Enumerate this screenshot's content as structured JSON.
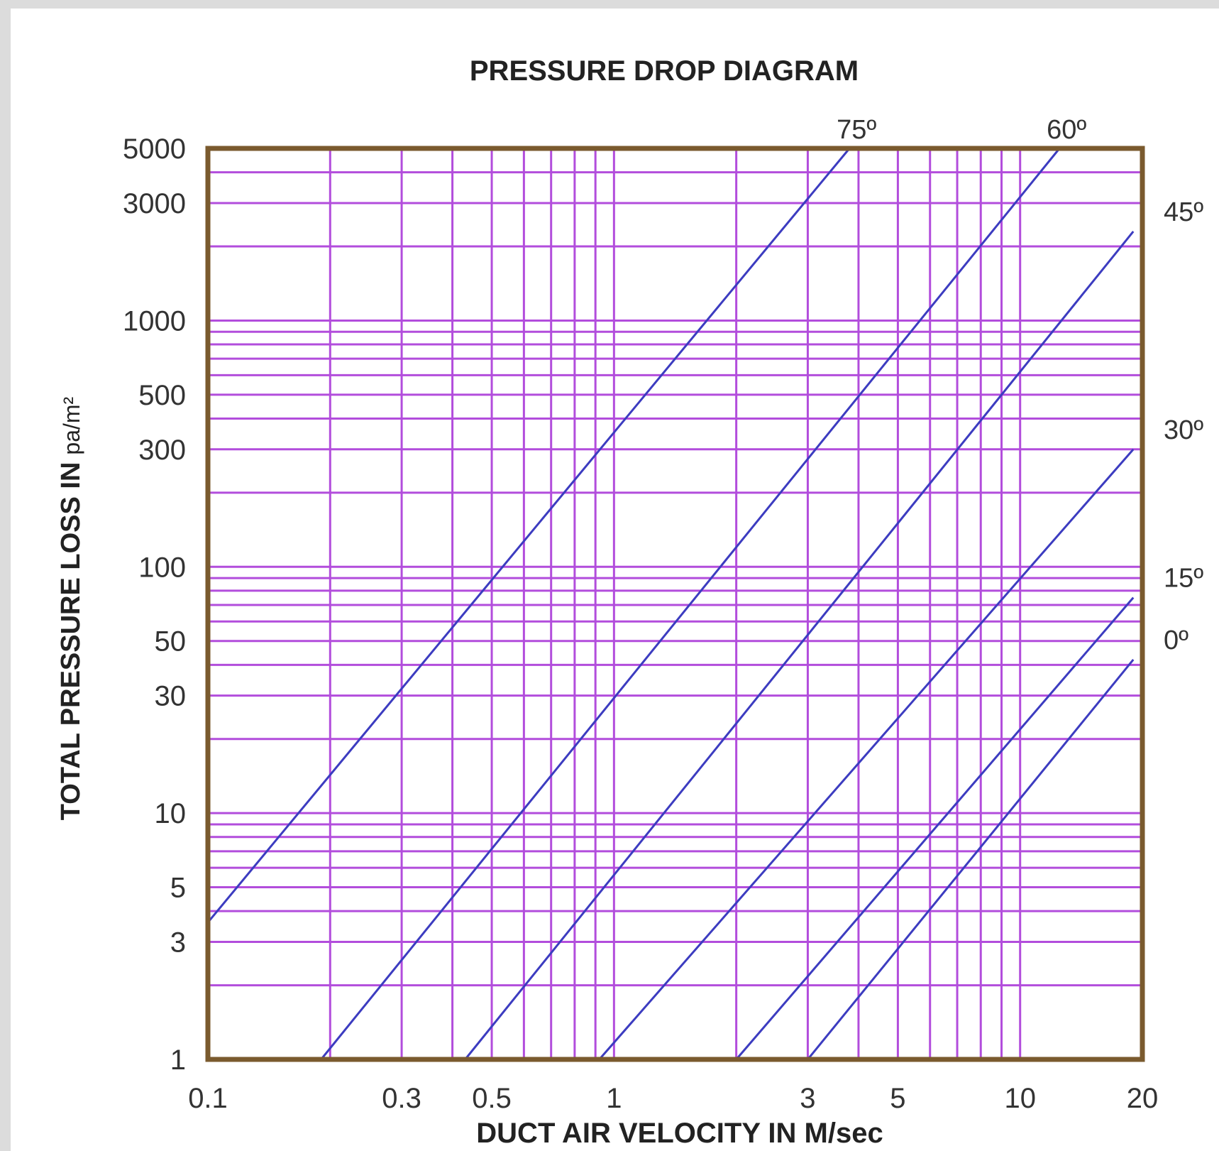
{
  "chart_data": {
    "type": "line",
    "title": "PRESSURE DROP DIAGRAM",
    "xlabel": "DUCT AIR VELOCITY IN M/sec",
    "ylabel": "TOTAL PRESSURE LOSS IN",
    "ylabel_unit": "pa/m²",
    "x_scale": "log",
    "y_scale": "log",
    "xlim": [
      0.1,
      20
    ],
    "ylim": [
      1,
      5000
    ],
    "grid": true,
    "x_ticks": [
      {
        "value": 0.1,
        "label": "0.1"
      },
      {
        "value": 0.3,
        "label": "0.3"
      },
      {
        "value": 0.5,
        "label": "0.5"
      },
      {
        "value": 1,
        "label": "1"
      },
      {
        "value": 3,
        "label": "3"
      },
      {
        "value": 5,
        "label": "5"
      },
      {
        "value": 10,
        "label": "10"
      },
      {
        "value": 20,
        "label": "20"
      }
    ],
    "y_ticks": [
      {
        "value": 1,
        "label": "1"
      },
      {
        "value": 3,
        "label": "3"
      },
      {
        "value": 5,
        "label": "5"
      },
      {
        "value": 10,
        "label": "10"
      },
      {
        "value": 30,
        "label": "30"
      },
      {
        "value": 50,
        "label": "50"
      },
      {
        "value": 100,
        "label": "100"
      },
      {
        "value": 300,
        "label": "300"
      },
      {
        "value": 500,
        "label": "500"
      },
      {
        "value": 1000,
        "label": "1000"
      },
      {
        "value": 3000,
        "label": "3000"
      },
      {
        "value": 5000,
        "label": "5000"
      }
    ],
    "series": [
      {
        "name": "75º",
        "points": [
          [
            0.1,
            3.6
          ],
          [
            3.8,
            5000
          ]
        ]
      },
      {
        "name": "60º",
        "points": [
          [
            0.19,
            1
          ],
          [
            12.5,
            5000
          ]
        ]
      },
      {
        "name": "45º",
        "points": [
          [
            0.43,
            1
          ],
          [
            19,
            2300
          ]
        ]
      },
      {
        "name": "30º",
        "points": [
          [
            0.92,
            1
          ],
          [
            19,
            300
          ]
        ]
      },
      {
        "name": "15º",
        "points": [
          [
            2.0,
            1
          ],
          [
            19,
            75
          ]
        ]
      },
      {
        "name": "0º",
        "points": [
          [
            3.0,
            1
          ],
          [
            19,
            42
          ]
        ]
      }
    ],
    "colors": {
      "frame": "#7a5a2e",
      "grid": "#b24ddc",
      "series": "#3c3cc0"
    }
  }
}
